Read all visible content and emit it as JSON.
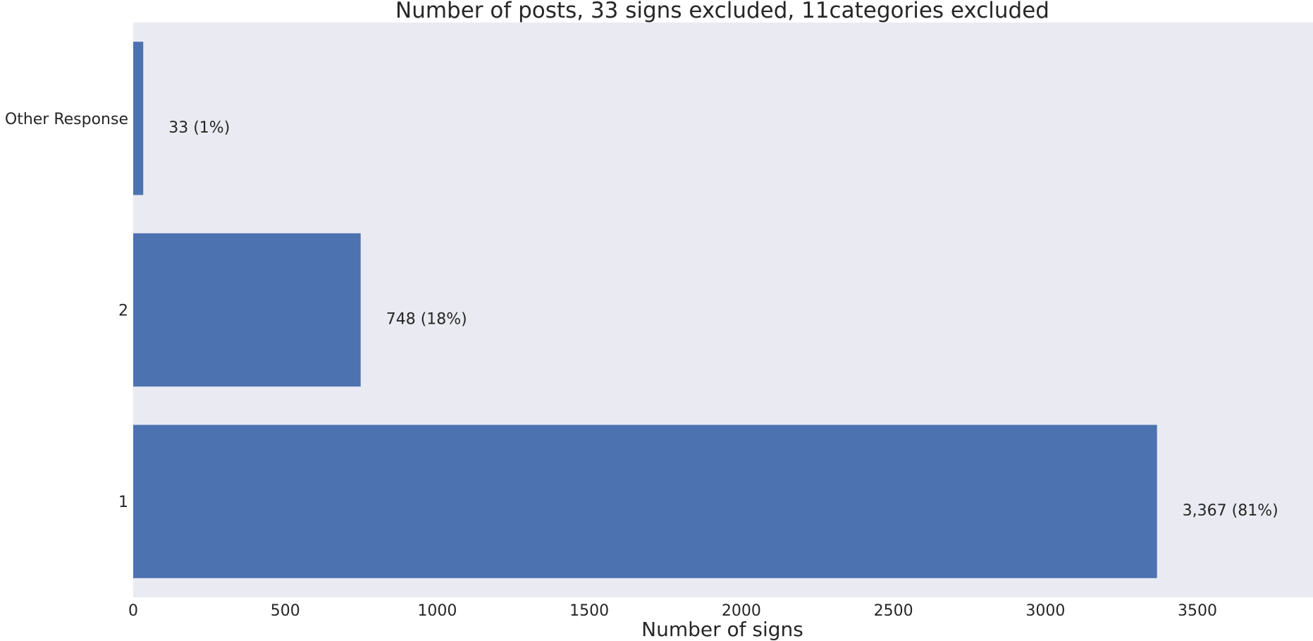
{
  "chart_data": {
    "type": "bar",
    "orientation": "horizontal",
    "title": "Number of posts, 33 signs excluded, 11categories excluded",
    "xlabel": "Number of signs",
    "ylabel": "",
    "categories": [
      "1",
      "2",
      "Other Response"
    ],
    "values": [
      3367,
      748,
      33
    ],
    "data_labels": [
      "3,367 (81%)",
      "748 (18%)",
      "33 (1%)"
    ],
    "xlim": [
      0,
      3880
    ],
    "xticks": [
      0,
      500,
      1000,
      1500,
      2000,
      2500,
      3000,
      3500
    ],
    "grid": false,
    "legend": "none",
    "colors": {
      "bar": "#4c72b0",
      "plot_background": "#eaeaf2",
      "text": "#262626"
    }
  }
}
